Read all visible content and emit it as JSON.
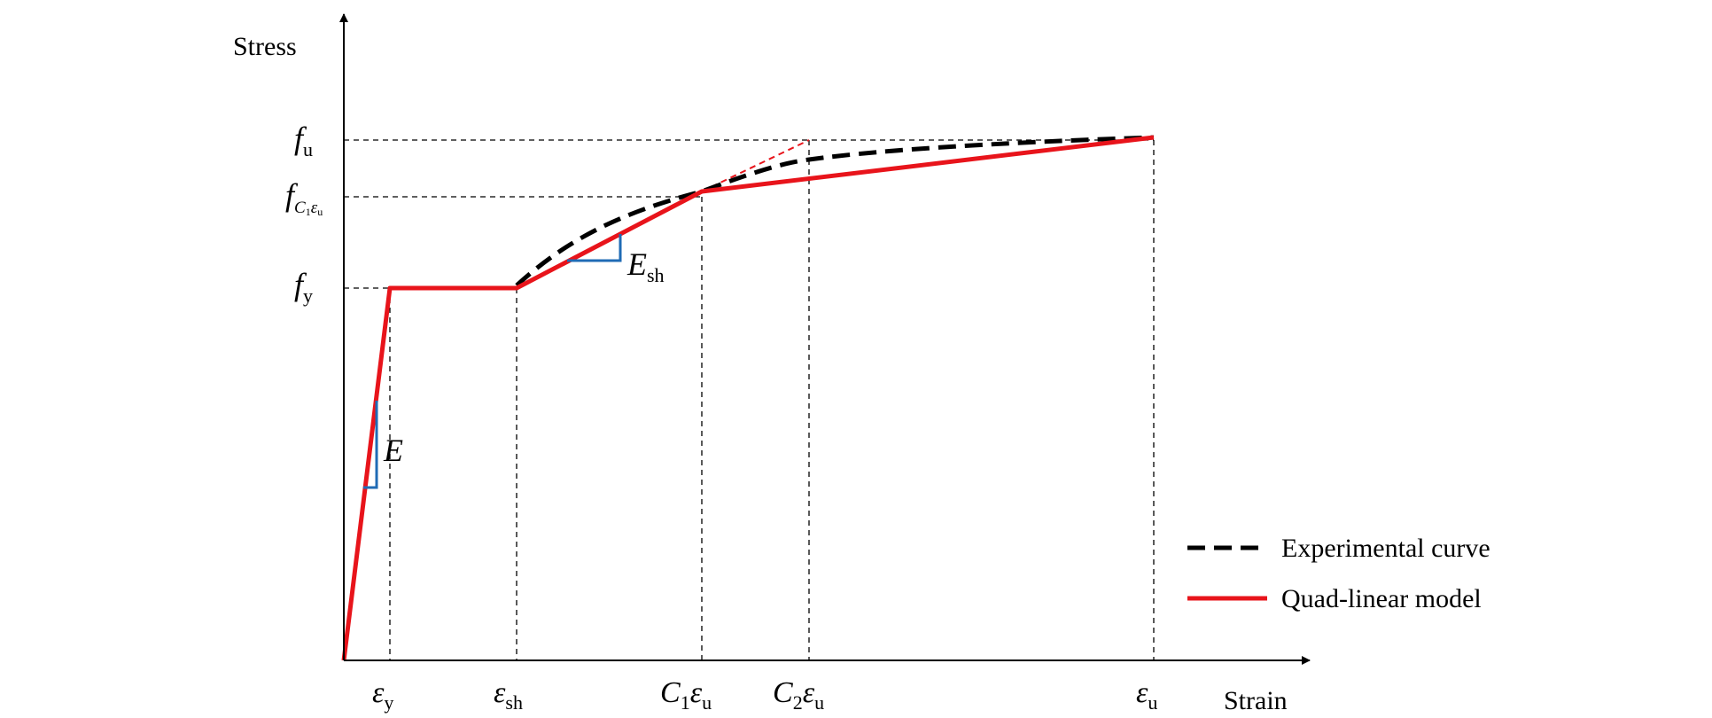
{
  "axes": {
    "y_label": "Stress",
    "x_label": "Strain"
  },
  "y_ticks": {
    "fu": {
      "base": "f",
      "sub": "u"
    },
    "fc": {
      "base": "f",
      "sub": "C",
      "subsub": "1",
      "sub2": "ε",
      "sub2sub": "u"
    },
    "fy": {
      "base": "f",
      "sub": "y"
    }
  },
  "x_ticks": {
    "ey": {
      "base": "ε",
      "sub": "y"
    },
    "esh": {
      "base": "ε",
      "sub": "sh"
    },
    "c1eu": {
      "pre": "C",
      "pre_sub": "1",
      "base": "ε",
      "sub": "u"
    },
    "c2eu": {
      "pre": "C",
      "pre_sub": "2",
      "base": "ε",
      "sub": "u"
    },
    "eu": {
      "base": "ε",
      "sub": "u"
    }
  },
  "annotations": {
    "E": {
      "base": "E"
    },
    "Esh": {
      "base": "E",
      "sub": "sh"
    }
  },
  "legend": {
    "experimental": "Experimental curve",
    "model": "Quad-linear model"
  },
  "colors": {
    "model": "#e8141b",
    "experimental": "#000000",
    "slope_marker": "#1f6bb5",
    "guides": "#000000"
  }
}
